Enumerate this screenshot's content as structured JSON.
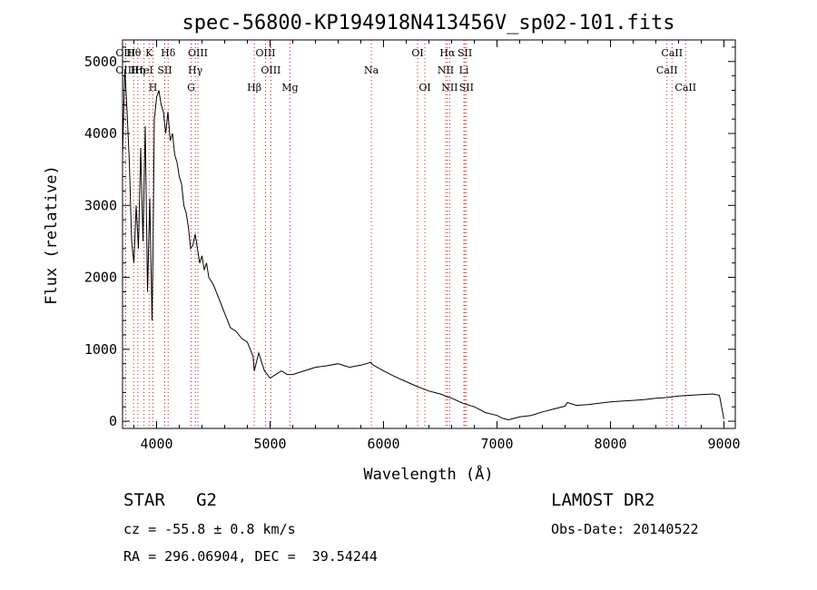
{
  "chart_data": {
    "type": "line",
    "title": "spec-56800-KP194918N413456V_sp02-101.fits",
    "xlabel": "Wavelength (Å)",
    "ylabel": "Flux (relative)",
    "xlim": [
      3700,
      9100
    ],
    "ylim": [
      -100,
      5300
    ],
    "xticks": [
      4000,
      5000,
      6000,
      7000,
      8000,
      9000
    ],
    "yticks": [
      0,
      1000,
      2000,
      3000,
      4000,
      5000
    ],
    "grid": false,
    "series": [
      {
        "x": [
          3700,
          3720,
          3740,
          3760,
          3780,
          3800,
          3820,
          3840,
          3860,
          3880,
          3900,
          3920,
          3940,
          3960,
          3968,
          3980,
          4000,
          4020,
          4040,
          4060,
          4080,
          4100,
          4120,
          4140,
          4160,
          4180,
          4200,
          4220,
          4240,
          4260,
          4280,
          4300,
          4320,
          4340,
          4360,
          4380,
          4400,
          4420,
          4440,
          4460,
          4480,
          4500,
          4550,
          4600,
          4650,
          4700,
          4750,
          4800,
          4850,
          4861,
          4900,
          4950,
          5000,
          5050,
          5100,
          5150,
          5200,
          5300,
          5400,
          5500,
          5600,
          5700,
          5800,
          5890,
          5900,
          6000,
          6100,
          6200,
          6300,
          6400,
          6500,
          6563,
          6600,
          6700,
          6800,
          6900,
          7000,
          7050,
          7100,
          7150,
          7200,
          7300,
          7400,
          7500,
          7600,
          7620,
          7700,
          7800,
          7900,
          8000,
          8100,
          8200,
          8300,
          8400,
          8500,
          8600,
          8700,
          8800,
          8900,
          8960,
          9000
        ],
        "y": [
          3700,
          4900,
          4300,
          3600,
          2500,
          2200,
          3000,
          2400,
          3800,
          2500,
          4100,
          1800,
          3100,
          1400,
          2300,
          4200,
          4500,
          4600,
          4400,
          4300,
          4000,
          4300,
          3900,
          4000,
          3700,
          3600,
          3400,
          3300,
          3000,
          2900,
          2700,
          2400,
          2450,
          2600,
          2400,
          2200,
          2300,
          2100,
          2200,
          2000,
          1950,
          1900,
          1700,
          1500,
          1300,
          1250,
          1150,
          1100,
          900,
          700,
          950,
          700,
          600,
          650,
          700,
          650,
          650,
          700,
          750,
          770,
          800,
          750,
          780,
          820,
          790,
          700,
          620,
          550,
          480,
          420,
          380,
          340,
          320,
          250,
          200,
          120,
          80,
          40,
          20,
          40,
          60,
          80,
          130,
          170,
          210,
          260,
          220,
          230,
          250,
          270,
          280,
          290,
          300,
          320,
          330,
          350,
          360,
          370,
          380,
          360,
          30
        ]
      }
    ],
    "lines": [
      {
        "name": "Hθ",
        "x": 3798
      },
      {
        "name": "K",
        "x": 3934
      },
      {
        "name": "Hδ",
        "x": 4102
      },
      {
        "name": "OIII",
        "x": 4364
      },
      {
        "name": "OIII",
        "x": 4960
      },
      {
        "name": "OI",
        "x": 6300
      },
      {
        "name": "Hα",
        "x": 6563
      },
      {
        "name": "SII",
        "x": 6717
      },
      {
        "name": "CaII",
        "x": 8542
      },
      {
        "name": "OIII",
        "x": 3727
      },
      {
        "name": "HeI",
        "x": 3889
      },
      {
        "name": "SII",
        "x": 4072
      },
      {
        "name": "Hγ",
        "x": 4341
      },
      {
        "name": "OIII",
        "x": 5007
      },
      {
        "name": "Na",
        "x": 5893
      },
      {
        "name": "NII",
        "x": 6548
      },
      {
        "name": "Li",
        "x": 6708
      },
      {
        "name": "CaII",
        "x": 8498
      },
      {
        "name": "OIII",
        "x": 3727
      },
      {
        "name": "Hη",
        "x": 3835
      },
      {
        "name": "H",
        "x": 3968
      },
      {
        "name": "G",
        "x": 4304
      },
      {
        "name": "Hβ",
        "x": 4861
      },
      {
        "name": "Mg",
        "x": 5175
      },
      {
        "name": "OI",
        "x": 6364
      },
      {
        "name": "NII",
        "x": 6583
      },
      {
        "name": "SII",
        "x": 6731
      },
      {
        "name": "CaII",
        "x": 8662
      }
    ]
  },
  "info": {
    "star_class": "STAR   G2",
    "survey": "LAMOST DR2",
    "redshift": "cz = -55.8 ± 0.8 km/s",
    "obs_date": "Obs-Date: 20140522",
    "coords": "RA = 296.06904, DEC =  39.54244"
  },
  "colors": {
    "axes": "#000000",
    "spectrum": "#000000",
    "marker_lines": "#d01818"
  }
}
